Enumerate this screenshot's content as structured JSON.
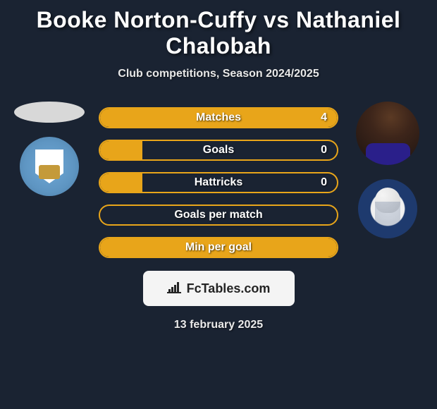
{
  "header": {
    "title": "Booke Norton-Cuffy vs Nathaniel Chalobah",
    "subtitle": "Club competitions, Season 2024/2025"
  },
  "stats": [
    {
      "label": "Matches",
      "value": "4",
      "fill_pct": 100,
      "show_value": true
    },
    {
      "label": "Goals",
      "value": "0",
      "fill_pct": 18,
      "show_value": true
    },
    {
      "label": "Hattricks",
      "value": "0",
      "fill_pct": 18,
      "show_value": true
    },
    {
      "label": "Goals per match",
      "value": "",
      "fill_pct": 0,
      "show_value": false
    },
    {
      "label": "Min per goal",
      "value": "",
      "fill_pct": 100,
      "show_value": false
    }
  ],
  "colors": {
    "bar_border": "#e8a51a",
    "bar_fill": "#e8a51a",
    "bar_empty_bg": "transparent",
    "background": "#1a2332"
  },
  "brand": {
    "icon": "📊",
    "text": "FcTables.com"
  },
  "footer": {
    "date": "13 february 2025"
  },
  "left_side": {
    "photo_type": "placeholder",
    "crest_name": "coventry-city"
  },
  "right_side": {
    "photo_type": "player",
    "crest_name": "sheffield-wednesday"
  }
}
